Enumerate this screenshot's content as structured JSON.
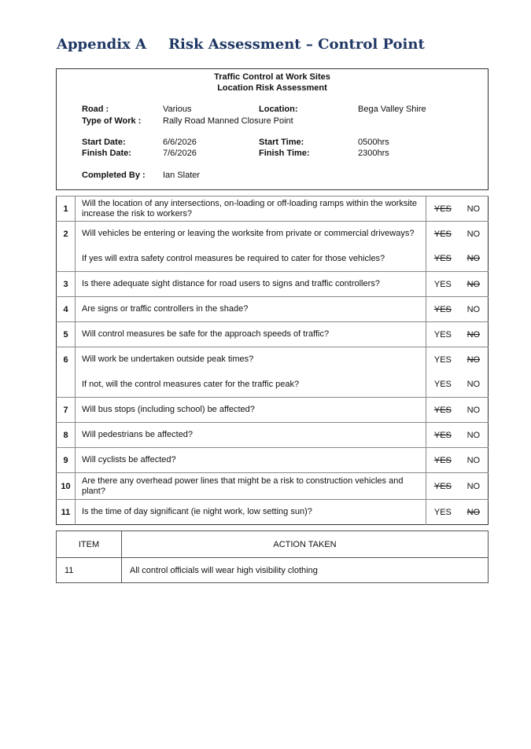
{
  "heading": {
    "appendix": "Appendix A",
    "title": "Risk Assessment – Control Point"
  },
  "header": {
    "line1": "Traffic Control at Work Sites",
    "line2": "Location Risk Assessment",
    "road_label": "Road :",
    "road": "Various",
    "location_label": "Location:",
    "location": "Bega Valley Shire",
    "work_label": "Type of Work :",
    "work": "Rally Road Manned Closure Point",
    "start_date_label": "Start Date:",
    "start_date": "6/6/2026",
    "start_time_label": "Start Time:",
    "start_time": "0500hrs",
    "finish_date_label": "Finish Date:",
    "finish_date": "7/6/2026",
    "finish_time_label": "Finish Time:",
    "finish_time": "2300hrs",
    "completed_label": "Completed By :",
    "completed": "Ian Slater"
  },
  "yes": "YES",
  "no": "NO",
  "rows": [
    {
      "num": "1",
      "q": "Will the location of any intersections, on-loading or off-loading ramps within the worksite increase the risk to workers?",
      "struck": "yes"
    },
    {
      "num": "2",
      "q": "Will vehicles be entering or leaving the worksite from private or commercial driveways?",
      "struck": "yes"
    },
    {
      "num": "",
      "q": "If yes will extra safety control measures be required to cater for those vehicles?",
      "struck": "both"
    },
    {
      "num": "3",
      "q": "Is there adequate sight distance for road users to signs and traffic controllers?",
      "struck": "no"
    },
    {
      "num": "4",
      "q": "Are signs or traffic controllers in the shade?",
      "struck": "yes"
    },
    {
      "num": "5",
      "q": "Will control measures be safe for the approach speeds of traffic?",
      "struck": "no"
    },
    {
      "num": "6",
      "q": "Will work be undertaken outside peak times?",
      "struck": "no"
    },
    {
      "num": "",
      "q": "If not, will the control measures cater for the traffic peak?",
      "struck": "none"
    },
    {
      "num": "7",
      "q": "Will bus stops (including school) be affected?",
      "struck": "yes"
    },
    {
      "num": "8",
      "q": "Will pedestrians be affected?",
      "struck": "yes"
    },
    {
      "num": "9",
      "q": "Will cyclists be affected?",
      "struck": "yes"
    },
    {
      "num": "10",
      "q": "Are there any overhead power lines that might be a risk to construction vehicles and plant?",
      "struck": "yes"
    },
    {
      "num": "11",
      "q": "Is the time of day significant (ie night work, low setting sun)?",
      "struck": "no"
    }
  ],
  "actions": {
    "col_item": "ITEM",
    "col_action": "ACTION TAKEN",
    "rows": [
      {
        "item": "11",
        "action": "All control officials will wear high visibility clothing"
      }
    ]
  }
}
